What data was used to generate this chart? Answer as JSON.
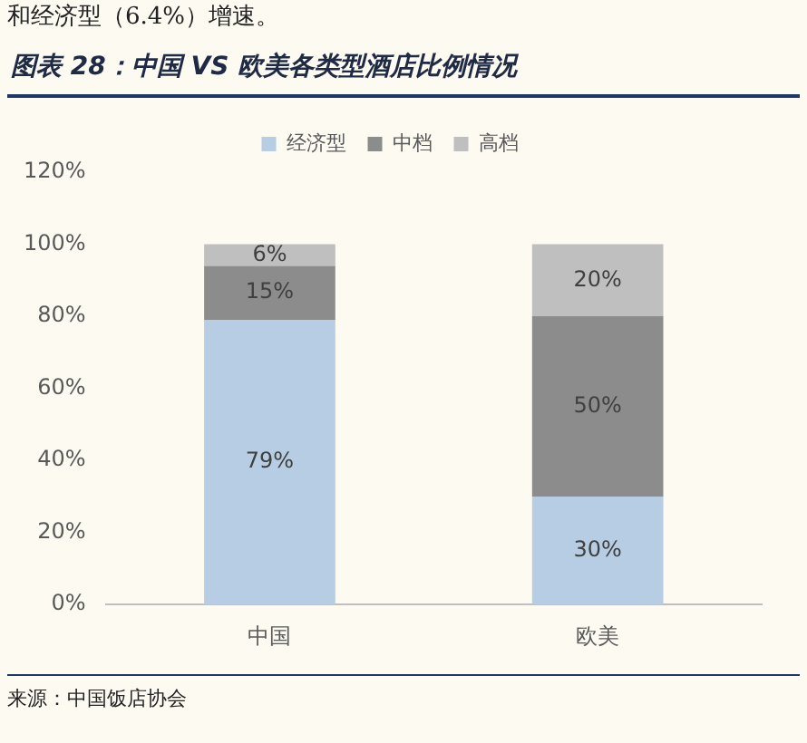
{
  "chart_data": {
    "type": "bar",
    "title": "图表 28：中国 VS 欧美各类型酒店比例情况",
    "annotations": [
      "和经济型（6.4%）增速。",
      "来源：中国饭店协会"
    ],
    "categories": [
      "中国",
      "欧美"
    ],
    "series": [
      {
        "name": "经济型",
        "color": "#b7cde3",
        "values": [
          79,
          30
        ],
        "value_labels": [
          "79%",
          "30%"
        ]
      },
      {
        "name": "中档",
        "color": "#8c8c8c",
        "values": [
          15,
          50
        ],
        "value_labels": [
          "15%",
          "50%"
        ]
      },
      {
        "name": "高档",
        "color": "#bfbfbf",
        "values": [
          6,
          20
        ],
        "value_labels": [
          "6%",
          "20%"
        ]
      }
    ],
    "stacked": true,
    "ylim": [
      0,
      120
    ],
    "yticks": [
      {
        "value": 0,
        "label": "0%"
      },
      {
        "value": 20,
        "label": "20%"
      },
      {
        "value": 40,
        "label": "40%"
      },
      {
        "value": 60,
        "label": "60%"
      },
      {
        "value": 80,
        "label": "80%"
      },
      {
        "value": 100,
        "label": "100%"
      },
      {
        "value": 120,
        "label": "120%"
      }
    ],
    "grid": false,
    "legend": "top"
  }
}
